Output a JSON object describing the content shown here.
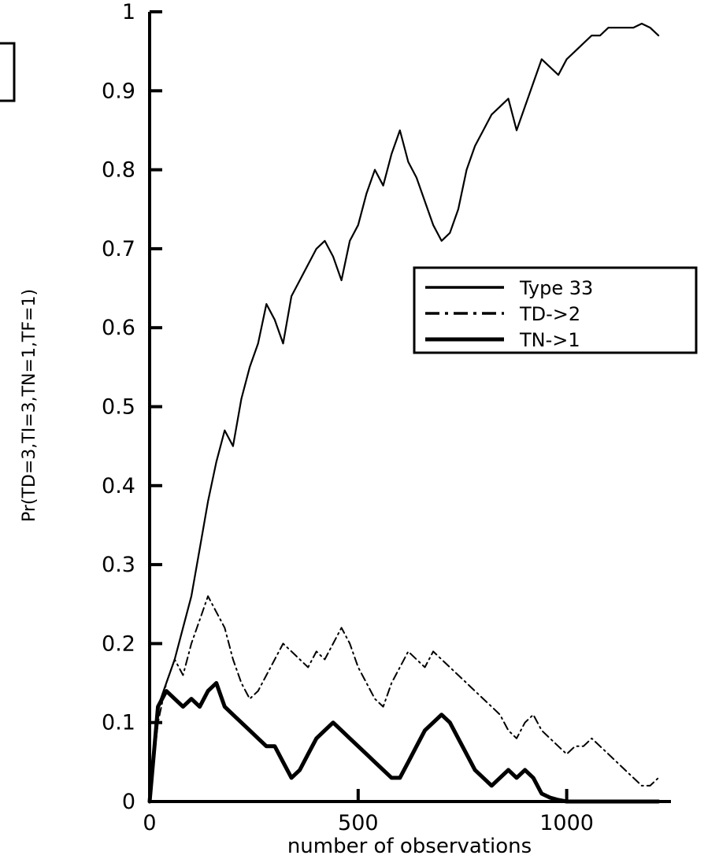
{
  "chart_data": {
    "type": "line",
    "title": "",
    "xlabel": "number of observations",
    "ylabel": "Pr(TD=3,TI=3,TN=1,TF=1)",
    "xlim": [
      0,
      1250
    ],
    "ylim": [
      0,
      1
    ],
    "x_ticks": [
      0,
      500,
      1000
    ],
    "x_tick_labels": [
      "0",
      "500",
      "1000"
    ],
    "y_ticks": [
      0,
      0.1,
      0.2,
      0.3,
      0.4,
      0.5,
      0.6,
      0.7,
      0.8,
      0.9,
      1
    ],
    "y_tick_labels": [
      "0",
      "0.1",
      "0.2",
      "0.3",
      "0.4",
      "0.5",
      "0.6",
      "0.7",
      "0.8",
      "0.9",
      "1"
    ],
    "grid": false,
    "legend_position": "right",
    "series": [
      {
        "name": "Type 33",
        "style": "solid",
        "color": "#000000",
        "x": [
          0,
          20,
          40,
          60,
          80,
          100,
          120,
          140,
          160,
          180,
          200,
          220,
          240,
          260,
          280,
          300,
          320,
          340,
          360,
          380,
          400,
          420,
          440,
          460,
          480,
          500,
          520,
          540,
          560,
          580,
          600,
          620,
          640,
          660,
          680,
          700,
          720,
          740,
          760,
          780,
          800,
          820,
          840,
          860,
          880,
          900,
          920,
          940,
          960,
          980,
          1000,
          1020,
          1040,
          1060,
          1080,
          1100,
          1120,
          1140,
          1160,
          1180,
          1200,
          1220
        ],
        "y": [
          0.0,
          0.12,
          0.15,
          0.18,
          0.22,
          0.26,
          0.32,
          0.38,
          0.43,
          0.47,
          0.45,
          0.51,
          0.55,
          0.58,
          0.63,
          0.61,
          0.58,
          0.64,
          0.66,
          0.68,
          0.7,
          0.71,
          0.69,
          0.66,
          0.71,
          0.73,
          0.77,
          0.8,
          0.78,
          0.82,
          0.85,
          0.81,
          0.79,
          0.76,
          0.73,
          0.71,
          0.72,
          0.75,
          0.8,
          0.83,
          0.85,
          0.87,
          0.88,
          0.89,
          0.85,
          0.88,
          0.91,
          0.94,
          0.93,
          0.92,
          0.94,
          0.95,
          0.96,
          0.97,
          0.97,
          0.98,
          0.98,
          0.98,
          0.98,
          0.985,
          0.98,
          0.97
        ]
      },
      {
        "name": "TD->2",
        "style": "dashdot",
        "color": "#000000",
        "x": [
          0,
          20,
          40,
          60,
          80,
          100,
          120,
          140,
          160,
          180,
          200,
          220,
          240,
          260,
          280,
          300,
          320,
          340,
          360,
          380,
          400,
          420,
          440,
          460,
          480,
          500,
          520,
          540,
          560,
          580,
          600,
          620,
          640,
          660,
          680,
          700,
          720,
          740,
          760,
          780,
          800,
          820,
          840,
          860,
          880,
          900,
          920,
          940,
          960,
          980,
          1000,
          1020,
          1040,
          1060,
          1080,
          1100,
          1120,
          1140,
          1160,
          1180,
          1200,
          1220
        ],
        "y": [
          0.0,
          0.1,
          0.15,
          0.18,
          0.16,
          0.2,
          0.23,
          0.26,
          0.24,
          0.22,
          0.18,
          0.15,
          0.13,
          0.14,
          0.16,
          0.18,
          0.2,
          0.19,
          0.18,
          0.17,
          0.19,
          0.18,
          0.2,
          0.22,
          0.2,
          0.17,
          0.15,
          0.13,
          0.12,
          0.15,
          0.17,
          0.19,
          0.18,
          0.17,
          0.19,
          0.18,
          0.17,
          0.16,
          0.15,
          0.14,
          0.13,
          0.12,
          0.11,
          0.09,
          0.08,
          0.1,
          0.11,
          0.09,
          0.08,
          0.07,
          0.06,
          0.07,
          0.07,
          0.08,
          0.07,
          0.06,
          0.05,
          0.04,
          0.03,
          0.02,
          0.02,
          0.03
        ]
      },
      {
        "name": "TN->1",
        "style": "solid-thick",
        "color": "#000000",
        "x": [
          0,
          20,
          40,
          60,
          80,
          100,
          120,
          140,
          160,
          180,
          200,
          220,
          240,
          260,
          280,
          300,
          320,
          340,
          360,
          380,
          400,
          420,
          440,
          460,
          480,
          500,
          520,
          540,
          560,
          580,
          600,
          620,
          640,
          660,
          680,
          700,
          720,
          740,
          760,
          780,
          800,
          820,
          840,
          860,
          880,
          900,
          920,
          940,
          960,
          980,
          1000,
          1020,
          1040,
          1060,
          1080,
          1100,
          1120,
          1140,
          1160,
          1180,
          1200,
          1220
        ],
        "y": [
          0.0,
          0.12,
          0.14,
          0.13,
          0.12,
          0.13,
          0.12,
          0.14,
          0.15,
          0.12,
          0.11,
          0.1,
          0.09,
          0.08,
          0.07,
          0.07,
          0.05,
          0.03,
          0.04,
          0.06,
          0.08,
          0.09,
          0.1,
          0.09,
          0.08,
          0.07,
          0.06,
          0.05,
          0.04,
          0.03,
          0.03,
          0.05,
          0.07,
          0.09,
          0.1,
          0.11,
          0.1,
          0.08,
          0.06,
          0.04,
          0.03,
          0.02,
          0.03,
          0.04,
          0.03,
          0.04,
          0.03,
          0.01,
          0.005,
          0.002,
          0.0,
          0.0,
          0.0,
          0.0,
          0.0,
          0.0,
          0.0,
          0.0,
          0.0,
          0.0,
          0.0,
          0.0
        ]
      }
    ]
  }
}
